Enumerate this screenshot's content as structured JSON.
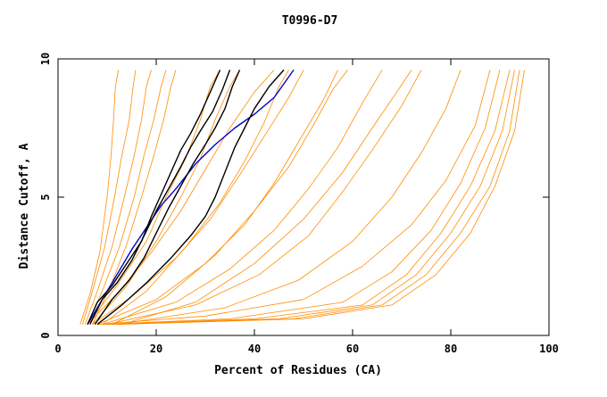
{
  "chart_data": {
    "type": "line",
    "title": "T0996-D7",
    "xlabel": "Percent of Residues (CA)",
    "ylabel": "Distance Cutoff, A",
    "xlim": [
      0,
      100
    ],
    "ylim": [
      0,
      10
    ],
    "x_ticks": [
      "0",
      "20",
      "40",
      "60",
      "80",
      "100"
    ],
    "y_ticks": [
      "0",
      "5",
      "10"
    ],
    "grid": false,
    "legend": "none",
    "colors": {
      "bulk": "#ff8c00",
      "highlight_a": "#000000",
      "highlight_b": "#0000cc"
    },
    "series": [
      {
        "group": "bulk",
        "x": [
          4.5,
          6.5,
          8.5,
          10,
          10.8,
          11.3,
          11.7,
          12.3
        ],
        "y": [
          0.4,
          1.5,
          3,
          5,
          6.5,
          7.8,
          9,
          9.6
        ]
      },
      {
        "group": "bulk",
        "x": [
          5,
          7,
          9.5,
          11.5,
          13,
          14.5,
          15.3,
          15.8
        ],
        "y": [
          0.4,
          1.6,
          3.2,
          5,
          6.5,
          7.8,
          9,
          9.6
        ]
      },
      {
        "group": "bulk",
        "x": [
          5.5,
          8,
          11,
          13.5,
          15.5,
          17,
          18,
          19
        ],
        "y": [
          0.4,
          1.6,
          3.2,
          5,
          6.5,
          7.8,
          9,
          9.6
        ]
      },
      {
        "group": "bulk",
        "x": [
          6,
          9,
          12.5,
          15.5,
          17.5,
          19.5,
          21,
          22
        ],
        "y": [
          0.4,
          1.6,
          3.2,
          5,
          6.5,
          7.8,
          9,
          9.6
        ]
      },
      {
        "group": "bulk",
        "x": [
          7,
          10.5,
          14,
          17,
          19.5,
          21.5,
          23,
          24
        ],
        "y": [
          0.4,
          1.7,
          3.3,
          5,
          6.5,
          7.8,
          9,
          9.6
        ]
      },
      {
        "group": "bulk",
        "x": [
          6,
          12,
          19,
          25,
          30,
          35,
          40,
          44
        ],
        "y": [
          0.4,
          1.5,
          3,
          4.5,
          6,
          7.5,
          8.8,
          9.6
        ]
      },
      {
        "group": "bulk",
        "x": [
          7,
          15,
          24,
          31,
          37,
          42,
          47,
          50
        ],
        "y": [
          0.4,
          1.4,
          2.8,
          4.2,
          5.8,
          7.2,
          8.6,
          9.6
        ]
      },
      {
        "group": "bulk",
        "x": [
          8,
          20,
          30,
          38,
          44,
          49,
          54,
          57
        ],
        "y": [
          0.4,
          1.3,
          2.6,
          4,
          5.5,
          7,
          8.5,
          9.6
        ]
      },
      {
        "group": "bulk",
        "x": [
          9,
          24,
          35,
          44,
          51,
          57,
          62,
          66
        ],
        "y": [
          0.4,
          1.2,
          2.4,
          3.8,
          5.3,
          6.8,
          8.4,
          9.6
        ]
      },
      {
        "group": "bulk",
        "x": [
          10,
          28,
          41,
          51,
          58,
          64,
          70,
          74
        ],
        "y": [
          0.4,
          1.1,
          2.2,
          3.6,
          5.2,
          6.7,
          8.3,
          9.6
        ]
      },
      {
        "group": "bulk",
        "x": [
          12,
          34,
          49,
          60,
          68,
          74,
          79,
          82
        ],
        "y": [
          0.4,
          1,
          2,
          3.4,
          5,
          6.6,
          8.2,
          9.6
        ]
      },
      {
        "group": "bulk",
        "x": [
          8,
          30,
          50,
          62,
          72,
          79,
          85,
          88
        ],
        "y": [
          0.4,
          0.7,
          1.3,
          2.5,
          4,
          5.6,
          7.6,
          9.6
        ]
      },
      {
        "group": "bulk",
        "x": [
          8,
          35,
          58,
          68,
          76,
          82,
          87,
          90
        ],
        "y": [
          0.4,
          0.6,
          1.2,
          2.3,
          3.8,
          5.5,
          7.5,
          9.6
        ]
      },
      {
        "group": "bulk",
        "x": [
          9,
          40,
          62,
          71,
          78,
          84,
          89,
          92
        ],
        "y": [
          0.4,
          0.6,
          1.1,
          2.2,
          3.7,
          5.4,
          7.4,
          9.6
        ]
      },
      {
        "group": "bulk",
        "x": [
          10,
          45,
          64,
          73,
          80,
          86,
          90.5,
          93
        ],
        "y": [
          0.4,
          0.6,
          1.1,
          2.2,
          3.7,
          5.4,
          7.4,
          9.6
        ]
      },
      {
        "group": "bulk",
        "x": [
          11,
          48,
          66,
          75,
          82,
          88,
          92,
          94
        ],
        "y": [
          0.4,
          0.6,
          1.1,
          2.2,
          3.7,
          5.4,
          7.4,
          9.6
        ]
      },
      {
        "group": "bulk",
        "x": [
          12,
          50,
          68,
          77,
          84,
          89,
          93,
          95
        ],
        "y": [
          0.4,
          0.6,
          1.1,
          2.2,
          3.7,
          5.4,
          7.4,
          9.6
        ]
      },
      {
        "group": "bulk",
        "x": [
          6,
          12,
          18,
          22,
          26,
          29,
          31,
          33
        ],
        "y": [
          0.4,
          1.8,
          3.4,
          5,
          6.4,
          7.8,
          9,
          9.6
        ]
      },
      {
        "group": "bulk",
        "x": [
          7,
          14,
          20,
          25,
          29,
          32,
          35,
          37
        ],
        "y": [
          0.4,
          1.8,
          3.4,
          5,
          6.4,
          7.8,
          9,
          9.6
        ]
      },
      {
        "group": "bulk",
        "x": [
          9,
          18,
          26,
          33,
          38,
          42,
          45,
          47
        ],
        "y": [
          0.4,
          1.6,
          3.2,
          4.8,
          6.3,
          7.7,
          9,
          9.6
        ]
      },
      {
        "group": "bulk",
        "x": [
          11,
          22,
          32,
          40,
          47,
          52,
          56,
          59
        ],
        "y": [
          0.4,
          1.4,
          2.9,
          4.5,
          6.1,
          7.6,
          8.9,
          9.6
        ]
      },
      {
        "group": "bulk",
        "x": [
          13,
          28,
          40,
          50,
          58,
          64,
          69,
          72
        ],
        "y": [
          0.4,
          1.2,
          2.6,
          4.2,
          5.9,
          7.5,
          8.8,
          9.6
        ]
      },
      {
        "group": "highlight_a",
        "x": [
          6,
          8,
          11,
          14,
          17,
          19,
          21,
          23,
          25,
          27,
          29,
          31,
          33
        ],
        "y": [
          0.4,
          1.2,
          1.8,
          2.6,
          3.4,
          4.3,
          5.1,
          5.9,
          6.7,
          7.3,
          8,
          8.8,
          9.6
        ]
      },
      {
        "group": "highlight_a",
        "x": [
          6.5,
          9,
          12,
          15,
          17.5,
          20,
          22.5,
          25,
          27,
          29,
          31.5,
          33.5,
          35
        ],
        "y": [
          0.4,
          1.3,
          1.9,
          2.7,
          3.6,
          4.5,
          5.3,
          6.1,
          6.8,
          7.4,
          8.1,
          8.9,
          9.6
        ]
      },
      {
        "group": "highlight_a",
        "x": [
          7.5,
          11,
          14.5,
          17.5,
          20,
          22.5,
          25,
          27.5,
          30,
          32,
          34,
          35.5,
          37
        ],
        "y": [
          0.4,
          1.3,
          2,
          2.8,
          3.7,
          4.6,
          5.4,
          6.2,
          6.9,
          7.5,
          8.2,
          9,
          9.6
        ]
      },
      {
        "group": "highlight_a",
        "x": [
          8,
          13,
          18,
          23,
          27,
          30,
          32,
          34,
          36,
          38,
          40,
          43,
          46
        ],
        "y": [
          0.4,
          1.1,
          1.9,
          2.8,
          3.6,
          4.3,
          5,
          5.9,
          6.8,
          7.5,
          8.2,
          9,
          9.6
        ]
      },
      {
        "group": "highlight_b",
        "x": [
          6,
          9,
          12,
          15,
          18,
          21,
          24,
          28,
          32,
          36,
          40,
          44,
          48
        ],
        "y": [
          0.4,
          1.3,
          2.2,
          3.1,
          3.9,
          4.7,
          5.3,
          6.2,
          6.9,
          7.5,
          8,
          8.6,
          9.6
        ]
      }
    ]
  }
}
